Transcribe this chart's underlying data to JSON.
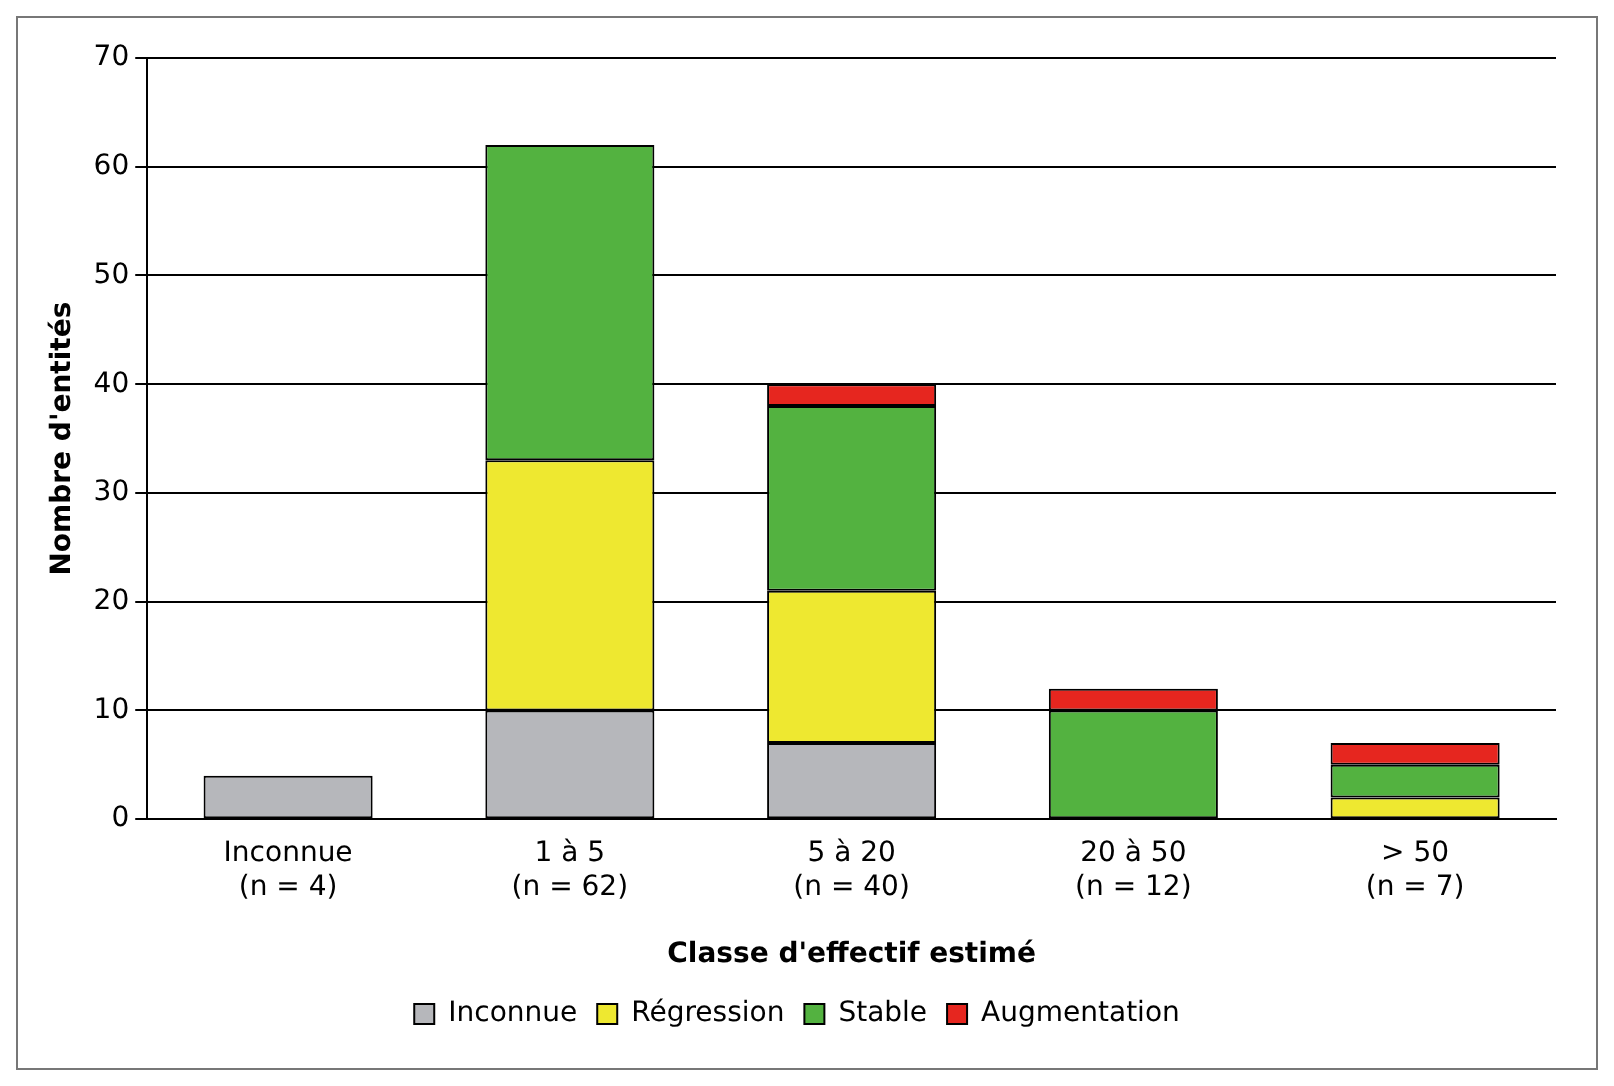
{
  "chart_data": {
    "type": "bar",
    "xlabel": "Classe d'effectif estimé",
    "ylabel": "Nombre d'entités",
    "categories": [
      "Inconnue\n(n = 4)",
      "1 à 5\n(n = 62)",
      "5 à 20\n(n = 40)",
      "20 à 50\n(n = 12)",
      "> 50\n(n = 7)"
    ],
    "stacked": true,
    "ylim": [
      0,
      70
    ],
    "yticks": [
      0,
      10,
      20,
      30,
      40,
      50,
      60,
      70
    ],
    "grid": "y",
    "legend": "bottom",
    "series": [
      {
        "name": "Inconnue",
        "color": "#b6b7bb",
        "values": [
          4,
          10,
          7,
          0,
          0
        ]
      },
      {
        "name": "Régression",
        "color": "#eee830",
        "values": [
          0,
          23,
          14,
          0,
          2
        ]
      },
      {
        "name": "Stable",
        "color": "#53b240",
        "values": [
          0,
          29,
          17,
          10,
          3
        ]
      },
      {
        "name": "Augmentation",
        "color": "#e6261f",
        "values": [
          0,
          0,
          2,
          2,
          2
        ]
      }
    ]
  }
}
